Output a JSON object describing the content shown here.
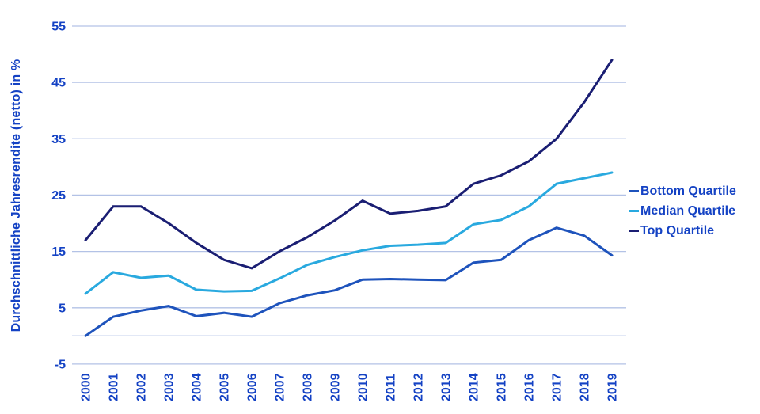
{
  "style": {
    "background": "#ffffff",
    "text_color": "#1442c4",
    "gridline_color": "#b3c2e6"
  },
  "chart_data": {
    "type": "line",
    "title": "",
    "xlabel": "",
    "ylabel": "Durchschnittliche Jahresrendite (netto) in %",
    "x": [
      "2000",
      "2001",
      "2002",
      "2003",
      "2004",
      "2005",
      "2006",
      "2007",
      "2008",
      "2009",
      "2010",
      "2011",
      "2012",
      "2013",
      "2014",
      "2015",
      "2016",
      "2017",
      "2018",
      "2019"
    ],
    "series": [
      {
        "name": "Bottom Quartile",
        "color": "#1e53bc",
        "values": [
          0,
          3.4,
          4.5,
          5.3,
          3.5,
          4.1,
          3.4,
          5.8,
          7.2,
          8.1,
          10,
          10.1,
          10,
          9.9,
          13,
          13.5,
          17,
          19.2,
          17.8,
          14.3
        ]
      },
      {
        "name": "Median Quartile",
        "color": "#29a9df",
        "values": [
          7.5,
          11.3,
          10.3,
          10.7,
          8.2,
          7.9,
          8,
          10.2,
          12.6,
          14,
          15.2,
          16,
          16.2,
          16.5,
          19.8,
          20.6,
          23,
          27,
          28,
          29
        ]
      },
      {
        "name": "Top Quartile",
        "color": "#1a1e73",
        "values": [
          17,
          23,
          23,
          20,
          16.5,
          13.5,
          12,
          15,
          17.5,
          20.5,
          24,
          21.7,
          22.2,
          23,
          27,
          28.5,
          31,
          35,
          41.5,
          49
        ]
      }
    ],
    "ylim": [
      -5,
      55
    ],
    "y_tick_values": [
      55,
      45,
      35,
      25,
      15,
      5,
      -5
    ],
    "y_gridline_values": [
      55,
      45,
      35,
      25,
      15,
      5,
      0,
      -5
    ],
    "grid": true,
    "legend_position": "right"
  }
}
